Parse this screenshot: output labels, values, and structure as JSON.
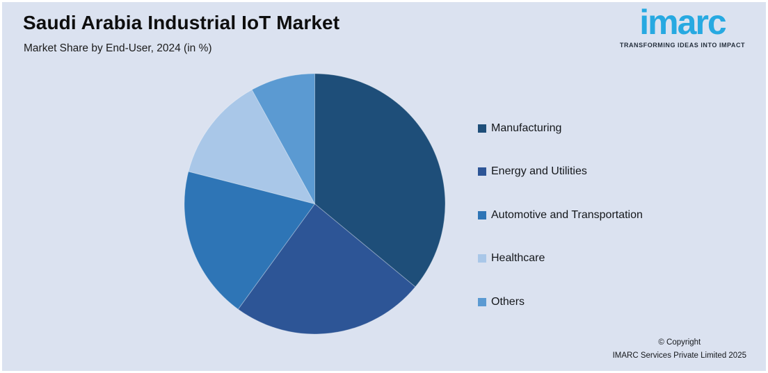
{
  "header": {
    "title": "Saudi Arabia Industrial IoT Market",
    "subtitle": "Market Share by End-User, 2024 (in %)"
  },
  "logo": {
    "text": "imarc",
    "tagline": "TRANSFORMING IDEAS INTO IMPACT",
    "brand_color": "#27A9E1"
  },
  "chart_data": {
    "type": "pie",
    "title": "Saudi Arabia Industrial IoT Market",
    "subtitle": "Market Share by End-User, 2024 (in %)",
    "unit": "%",
    "start_angle_deg": 0,
    "direction": "clockwise",
    "legend_position": "right",
    "data_labels_shown": false,
    "values_estimated_from_angles": true,
    "slices": [
      {
        "label": "Manufacturing",
        "value": 36,
        "color": "#1E4E79"
      },
      {
        "label": "Energy and Utilities",
        "value": 24,
        "color": "#2D5596"
      },
      {
        "label": "Automotive and Transportation",
        "value": 19,
        "color": "#2E75B6"
      },
      {
        "label": "Healthcare",
        "value": 13,
        "color": "#A9C7E8"
      },
      {
        "label": "Others",
        "value": 8,
        "color": "#5B9AD2"
      }
    ]
  },
  "copyright": {
    "line1": "© Copyright",
    "line2": "IMARC Services Private Limited 2025"
  },
  "colors": {
    "background": "#DBE2F0",
    "frame_border": "#FFFFFF",
    "title_text": "#0E0E0E",
    "body_text": "#14171B"
  }
}
